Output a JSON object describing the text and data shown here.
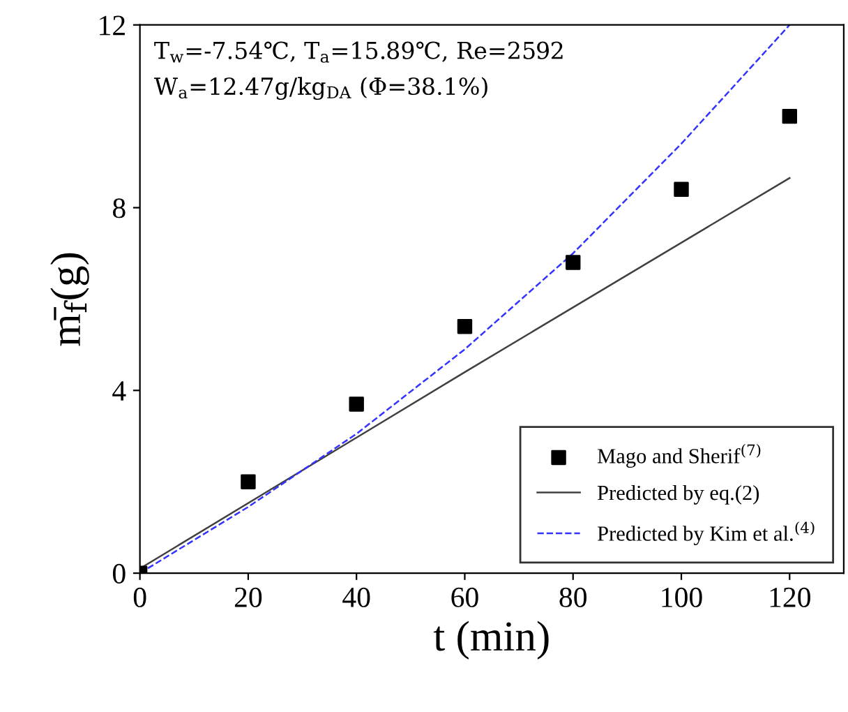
{
  "chart_data": {
    "type": "line",
    "xlabel": "t (min)",
    "ylabel": "m̄$_{f}$(g)",
    "xlim": [
      0,
      130
    ],
    "xticks": [
      0,
      20,
      40,
      60,
      80,
      100,
      120
    ],
    "ylim": [
      0,
      12
    ],
    "yticks": [
      0,
      4,
      8,
      12
    ],
    "grid": false,
    "legend": "bottom right",
    "annotations": [
      "T$_{w}$=-7.54℃, T$_{a}$=15.89℃, Re=2592",
      "W$_{a}$=12.47g/kg$_{DA}$ (Φ=38.1%)"
    ],
    "series": [
      {
        "name": "Mago and Sherif$^{(7)}$",
        "type": "scatter",
        "marker": "square",
        "color": "#000000",
        "x": [
          0,
          20,
          40,
          60,
          80,
          100,
          120
        ],
        "values": [
          0,
          2.0,
          3.7,
          5.4,
          6.8,
          8.4,
          10.0
        ]
      },
      {
        "name": "Predicted by eq.(2)",
        "type": "line",
        "line_style": "solid",
        "color": "#404040",
        "x": [
          0,
          60,
          120
        ],
        "values": [
          0.1,
          4.4,
          8.65
        ]
      },
      {
        "name": "Predicted by Kim et al.$^{(4)}$",
        "type": "line",
        "line_style": "dashed",
        "color": "#3333ff",
        "x": [
          0,
          20,
          40,
          60,
          80,
          100,
          120
        ],
        "values": [
          0,
          1.45,
          3.05,
          4.9,
          7.0,
          9.4,
          12.0
        ]
      }
    ]
  }
}
